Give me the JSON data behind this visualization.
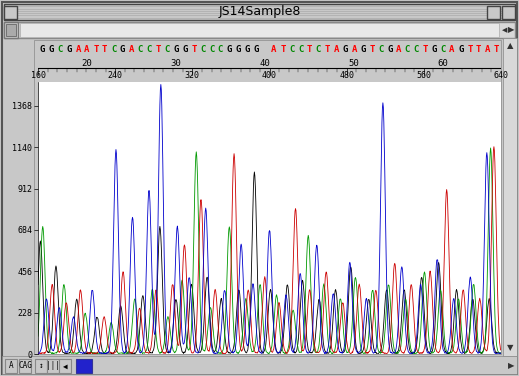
{
  "title": "JS14Sample8",
  "bg_color": "#c8c8c8",
  "plot_bg": "#ffffff",
  "y_ticks": [
    0,
    228,
    456,
    684,
    912,
    1140,
    1368
  ],
  "y_max": 1500,
  "x_ticks": [
    160,
    240,
    320,
    400,
    480,
    560,
    640
  ],
  "sequence": "GGCGAATTCGACCTCGGTCCCGGGG ATCCTCTAGAGTCGACCTGCAGTTAT",
  "base_colors": {
    "A": "#ff0000",
    "T": "#ff0000",
    "G": "#000000",
    "C": "#008800",
    " ": "#ffffff"
  },
  "pos_labels": [
    20,
    30,
    40,
    50,
    60
  ],
  "line_colors": [
    "#0000cc",
    "#cc0000",
    "#009900",
    "#000000"
  ],
  "title_bar_color": "#c8c8c8",
  "scrollbar_color": "#c0c0c0"
}
